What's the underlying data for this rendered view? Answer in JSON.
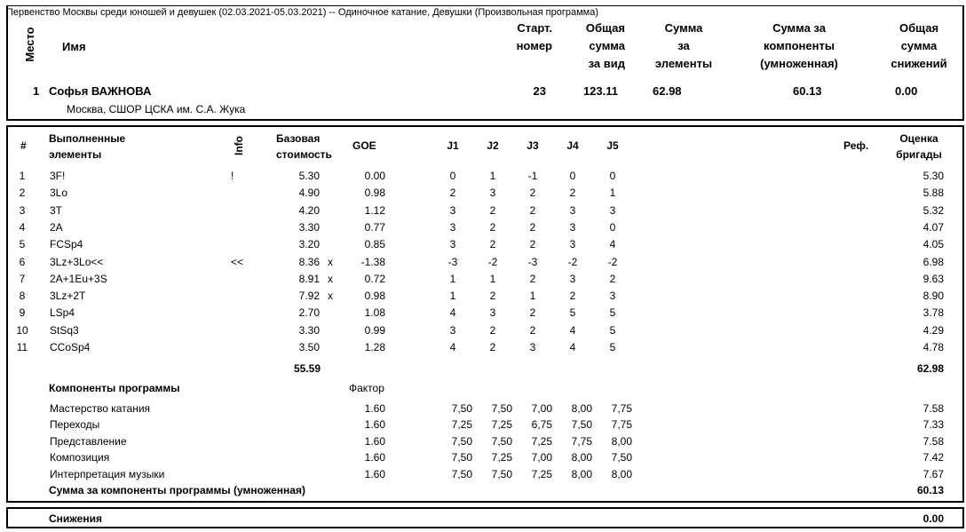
{
  "title": "Первенство Москвы среди юношей и девушек (02.03.2021-05.03.2021)  --  Одиночное катание, Девушки  (Произвольная программа)",
  "header": {
    "place": "Место",
    "name": "Имя",
    "start_no": [
      "Старт.",
      "номер"
    ],
    "total": [
      "Общая",
      "сумма",
      "за вид"
    ],
    "elements_sum": [
      "Сумма",
      "за",
      "элементы"
    ],
    "components_sum": [
      "Сумма за",
      "компоненты",
      "(умноженная)"
    ],
    "deductions": [
      "Общая",
      "сумма",
      "снижений"
    ]
  },
  "skater": {
    "place": "1",
    "name": "Софья ВАЖНОВА",
    "club": "Москва, СШОР ЦСКА им. С.А. Жука",
    "start_no": "23",
    "total": "123.11",
    "elements_sum": "62.98",
    "components_sum": "60.13",
    "deductions": "0.00"
  },
  "elements_table": {
    "headers": {
      "num": "#",
      "element": [
        "Выполненные",
        "элементы"
      ],
      "info": "Info",
      "base": [
        "Базовая",
        "стоимость"
      ],
      "goe": "GOE",
      "judges": [
        "J1",
        "J2",
        "J3",
        "J4",
        "J5"
      ],
      "ref": "Реф.",
      "score": [
        "Оценка",
        "бригады"
      ]
    },
    "rows": [
      {
        "num": "1",
        "element": "3F!",
        "info": "!",
        "base": "5.30",
        "x": "",
        "goe": "0.00",
        "j": [
          "0",
          "1",
          "-1",
          "0",
          "0"
        ],
        "score": "5.30"
      },
      {
        "num": "2",
        "element": "3Lo",
        "info": "",
        "base": "4.90",
        "x": "",
        "goe": "0.98",
        "j": [
          "2",
          "3",
          "2",
          "2",
          "1"
        ],
        "score": "5.88"
      },
      {
        "num": "3",
        "element": "3T",
        "info": "",
        "base": "4.20",
        "x": "",
        "goe": "1.12",
        "j": [
          "3",
          "2",
          "2",
          "3",
          "3"
        ],
        "score": "5.32"
      },
      {
        "num": "4",
        "element": "2A",
        "info": "",
        "base": "3.30",
        "x": "",
        "goe": "0.77",
        "j": [
          "3",
          "2",
          "2",
          "3",
          "0"
        ],
        "score": "4.07"
      },
      {
        "num": "5",
        "element": "FCSp4",
        "info": "",
        "base": "3.20",
        "x": "",
        "goe": "0.85",
        "j": [
          "3",
          "2",
          "2",
          "3",
          "4"
        ],
        "score": "4.05"
      },
      {
        "num": "6",
        "element": "3Lz+3Lo<<",
        "info": "<<",
        "base": "8.36",
        "x": "x",
        "goe": "-1.38",
        "j": [
          "-3",
          "-2",
          "-3",
          "-2",
          "-2"
        ],
        "score": "6.98"
      },
      {
        "num": "7",
        "element": "2A+1Eu+3S",
        "info": "",
        "base": "8.91",
        "x": "x",
        "goe": "0.72",
        "j": [
          "1",
          "1",
          "2",
          "3",
          "2"
        ],
        "score": "9.63"
      },
      {
        "num": "8",
        "element": "3Lz+2T",
        "info": "",
        "base": "7.92",
        "x": "x",
        "goe": "0.98",
        "j": [
          "1",
          "2",
          "1",
          "2",
          "3"
        ],
        "score": "8.90"
      },
      {
        "num": "9",
        "element": "LSp4",
        "info": "",
        "base": "2.70",
        "x": "",
        "goe": "1.08",
        "j": [
          "4",
          "3",
          "2",
          "5",
          "5"
        ],
        "score": "3.78"
      },
      {
        "num": "10",
        "element": "StSq3",
        "info": "",
        "base": "3.30",
        "x": "",
        "goe": "0.99",
        "j": [
          "3",
          "2",
          "2",
          "4",
          "5"
        ],
        "score": "4.29"
      },
      {
        "num": "11",
        "element": "CCoSp4",
        "info": "",
        "base": "3.50",
        "x": "",
        "goe": "1.28",
        "j": [
          "4",
          "2",
          "3",
          "4",
          "5"
        ],
        "score": "4.78"
      }
    ],
    "base_total": "55.59",
    "score_total": "62.98"
  },
  "components": {
    "title": "Компоненты программы",
    "factor_label": "Фактор",
    "rows": [
      {
        "name": "Мастерство катания",
        "factor": "1.60",
        "j": [
          "7,50",
          "7,50",
          "7,00",
          "8,00",
          "7,75"
        ],
        "score": "7.58"
      },
      {
        "name": "Переходы",
        "factor": "1.60",
        "j": [
          "7,25",
          "7,25",
          "6,75",
          "7,50",
          "7,75"
        ],
        "score": "7.33"
      },
      {
        "name": "Представление",
        "factor": "1.60",
        "j": [
          "7,50",
          "7,50",
          "7,25",
          "7,75",
          "8,00"
        ],
        "score": "7.58"
      },
      {
        "name": "Композиция",
        "factor": "1.60",
        "j": [
          "7,50",
          "7,25",
          "7,00",
          "8,00",
          "7,50"
        ],
        "score": "7.42"
      },
      {
        "name": "Интерпретация музыки",
        "factor": "1.60",
        "j": [
          "7,50",
          "7,50",
          "7,25",
          "8,00",
          "8,00"
        ],
        "score": "7.67"
      }
    ],
    "sum_label": "Сумма за компоненты программы (умноженная)",
    "sum": "60.13"
  },
  "deductions": {
    "label": "Снижения",
    "value": "0.00"
  }
}
